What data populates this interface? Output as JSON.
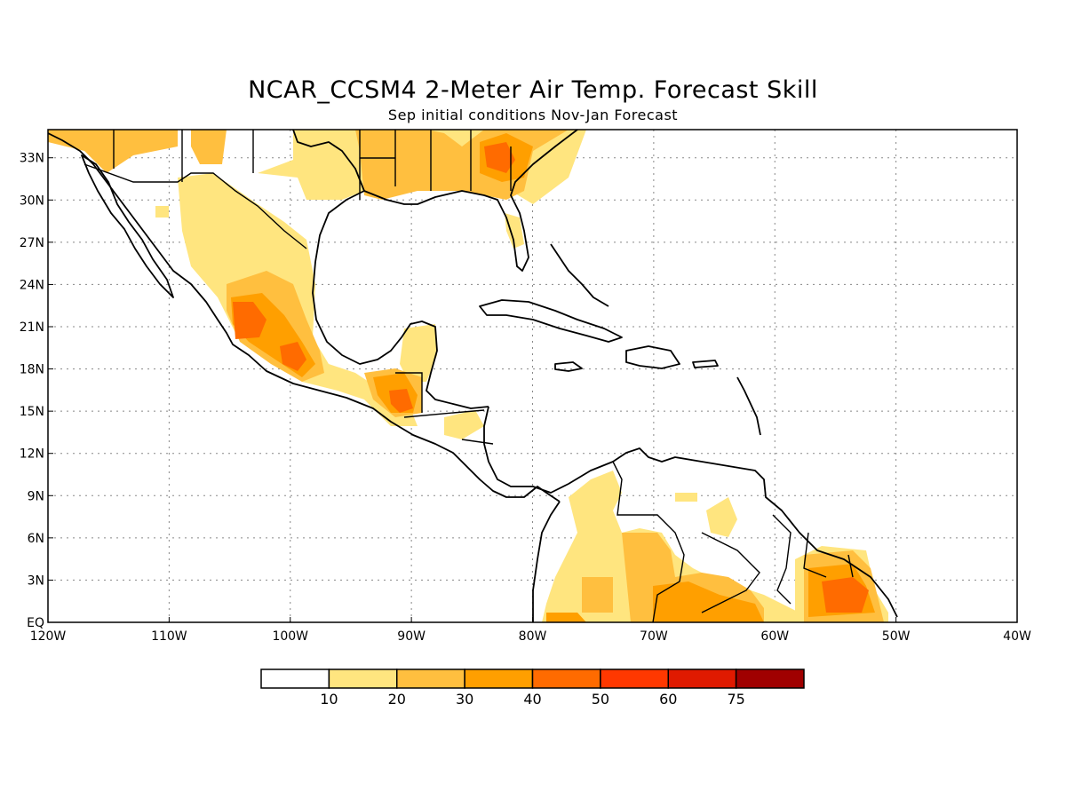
{
  "title": "NCAR_CCSM4 2-Meter Air Temp. Forecast Skill",
  "subtitle": "Sep initial conditions  Nov-Jan Forecast",
  "map": {
    "lon_range": [
      -120,
      -40
    ],
    "lat_range": [
      0,
      35
    ],
    "lat_ticks": [
      {
        "v": 33,
        "label": "33N"
      },
      {
        "v": 30,
        "label": "30N"
      },
      {
        "v": 27,
        "label": "27N"
      },
      {
        "v": 24,
        "label": "24N"
      },
      {
        "v": 21,
        "label": "21N"
      },
      {
        "v": 18,
        "label": "18N"
      },
      {
        "v": 15,
        "label": "15N"
      },
      {
        "v": 12,
        "label": "12N"
      },
      {
        "v": 9,
        "label": "9N"
      },
      {
        "v": 6,
        "label": "6N"
      },
      {
        "v": 3,
        "label": "3N"
      },
      {
        "v": 0,
        "label": "EQ"
      }
    ],
    "lon_ticks": [
      {
        "v": -120,
        "label": "120W"
      },
      {
        "v": -110,
        "label": "110W"
      },
      {
        "v": -100,
        "label": "100W"
      },
      {
        "v": -90,
        "label": "90W"
      },
      {
        "v": -80,
        "label": "80W"
      },
      {
        "v": -70,
        "label": "70W"
      },
      {
        "v": -60,
        "label": "60W"
      },
      {
        "v": -50,
        "label": "50W"
      },
      {
        "v": -40,
        "label": "40W"
      }
    ],
    "grid": "dotted"
  },
  "colorbar": {
    "levels": [
      "10",
      "20",
      "30",
      "40",
      "50",
      "60",
      "75"
    ],
    "colors": [
      "#ffffff",
      "#ffe57f",
      "#ffbf3f",
      "#ff9f00",
      "#ff6b00",
      "#ff3800",
      "#e01a00",
      "#a00000"
    ]
  }
}
